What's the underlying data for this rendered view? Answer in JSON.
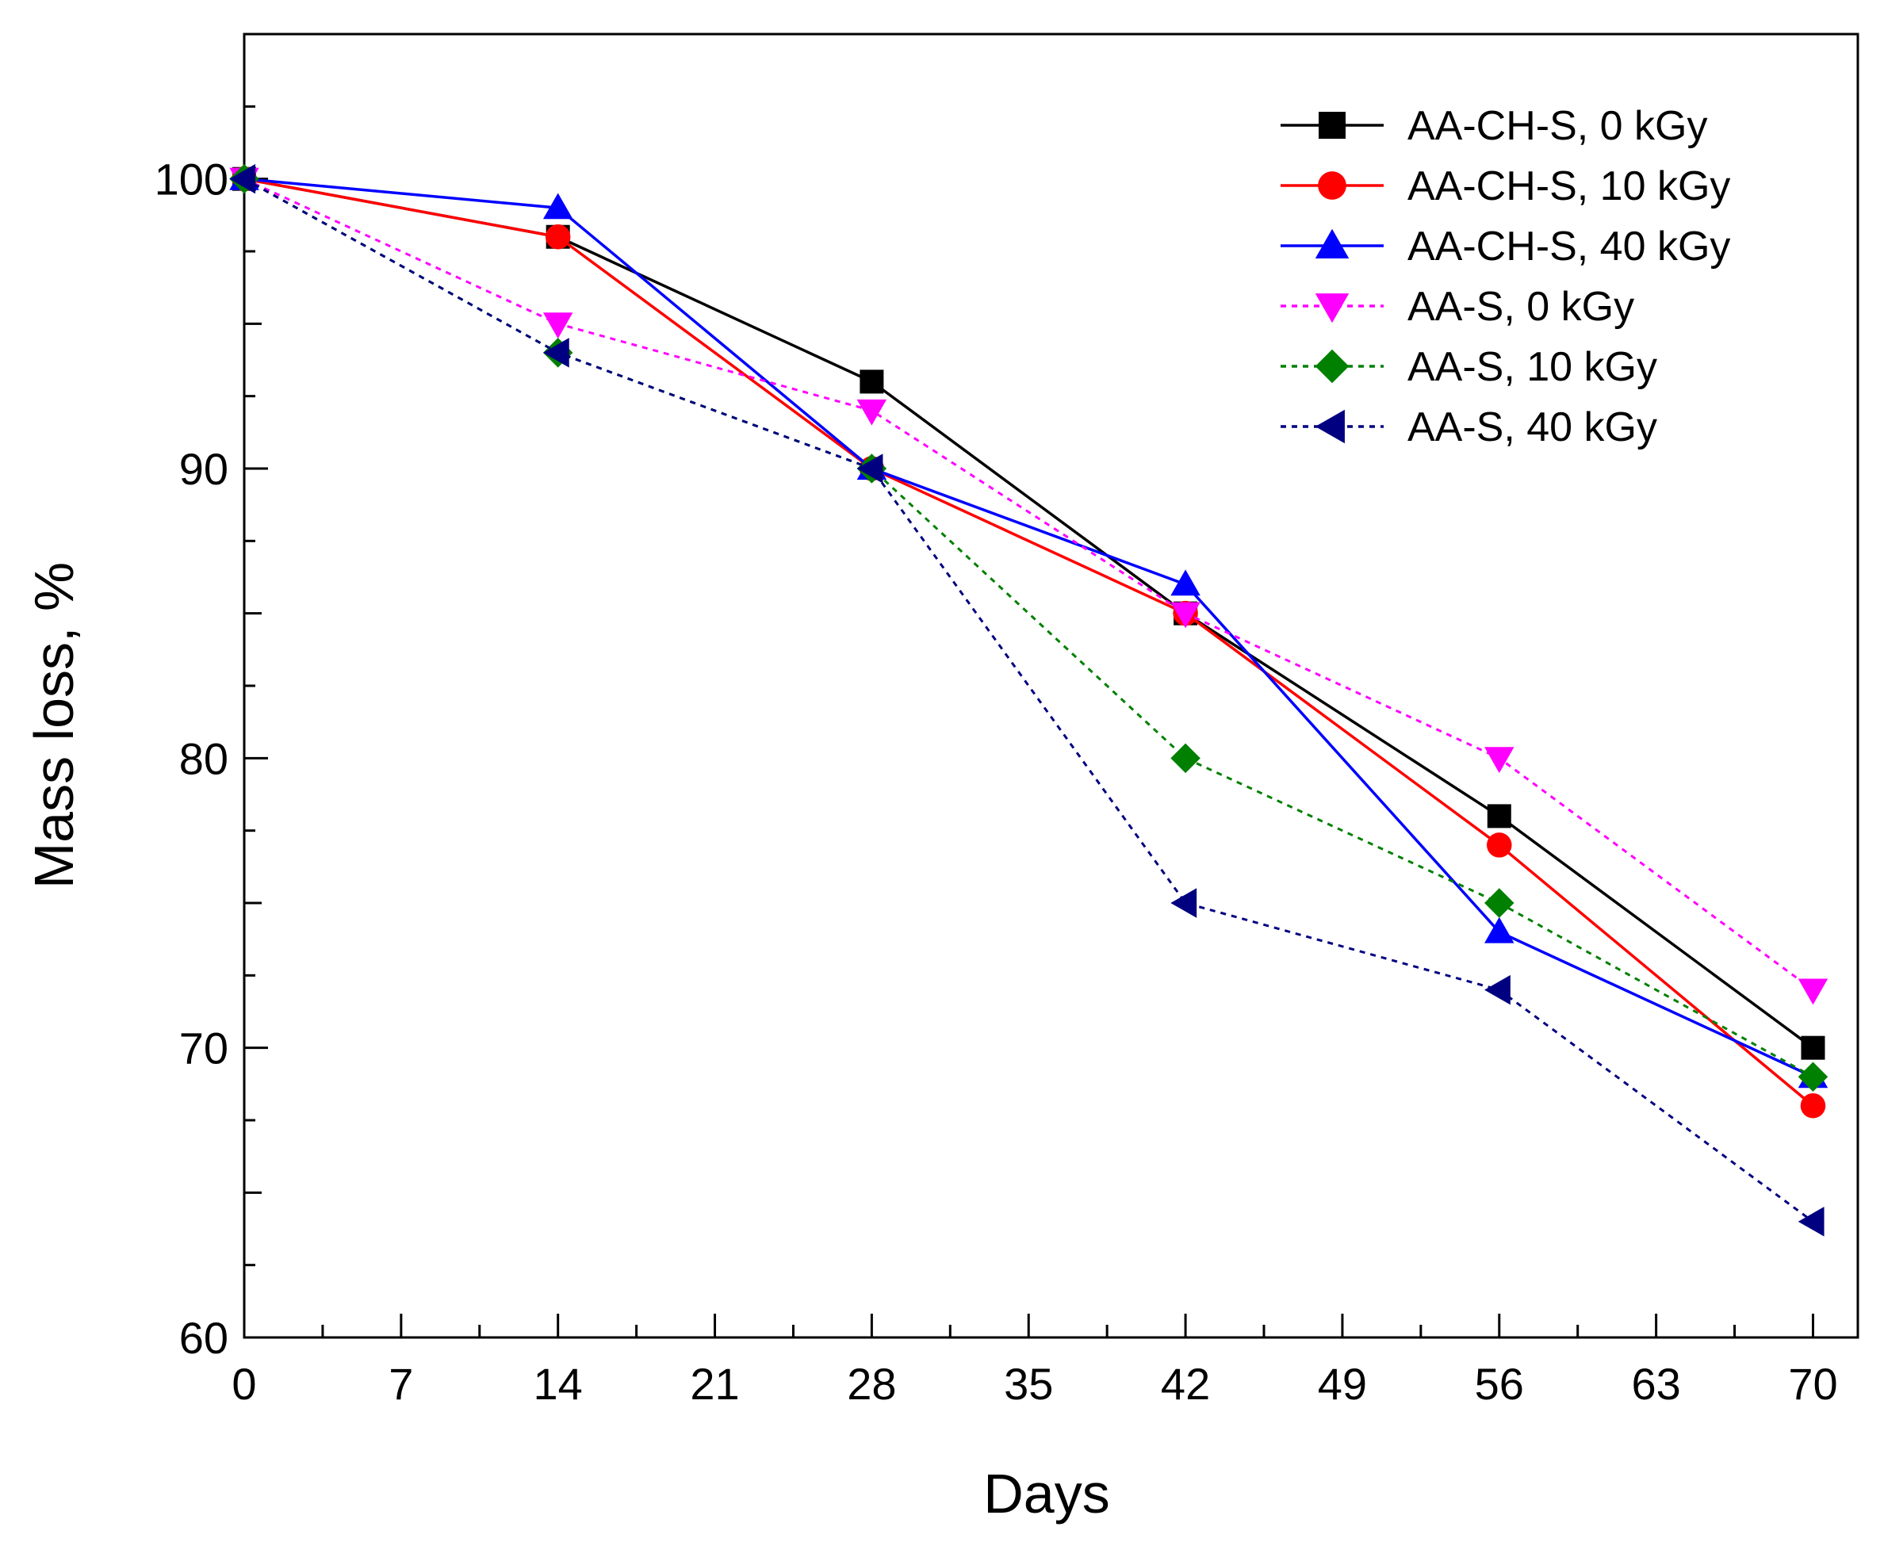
{
  "chart_data": {
    "type": "line",
    "title": "",
    "xlabel": "Days",
    "ylabel": "Mass loss,  %",
    "xlim": [
      0,
      72
    ],
    "ylim": [
      60,
      105
    ],
    "x_ticks": [
      0,
      7,
      14,
      21,
      28,
      35,
      42,
      49,
      56,
      63,
      70
    ],
    "y_ticks": [
      60,
      70,
      80,
      90,
      100
    ],
    "x_tick_labels": [
      "0",
      "7",
      "14",
      "21",
      "28",
      "35",
      "42",
      "49",
      "56",
      "63",
      "70"
    ],
    "y_tick_labels": [
      "60",
      "70",
      "80",
      "90",
      "100"
    ],
    "grid": false,
    "legend_position": "top-right",
    "x": [
      0,
      14,
      28,
      42,
      56,
      70
    ],
    "series": [
      {
        "name": "AA-CH-S, 0 kGy",
        "values": [
          100,
          98,
          93,
          85,
          78,
          70
        ],
        "color": "#000000",
        "marker": "square",
        "line": "solid"
      },
      {
        "name": "AA-CH-S, 10  kGy",
        "values": [
          100,
          98,
          90,
          85,
          77,
          68
        ],
        "color": "#ff0000",
        "marker": "circle",
        "line": "solid"
      },
      {
        "name": "AA-CH-S, 40  kGy",
        "values": [
          100,
          99,
          90,
          86,
          74,
          69
        ],
        "color": "#0000ff",
        "marker": "triangle-up",
        "line": "solid"
      },
      {
        "name": "AA-S, 0  kGy",
        "values": [
          100,
          95,
          92,
          85,
          80,
          72
        ],
        "color": "#ff00ff",
        "marker": "triangle-down",
        "line": "dotted"
      },
      {
        "name": "AA-S, 10  kGy",
        "values": [
          100,
          94,
          90,
          80,
          75,
          69
        ],
        "color": "#008000",
        "marker": "diamond",
        "line": "dotted"
      },
      {
        "name": "AA-S, 40  kGy",
        "values": [
          100,
          94,
          90,
          75,
          72,
          64
        ],
        "color": "#000080",
        "marker": "triangle-left",
        "line": "dotted"
      }
    ]
  }
}
